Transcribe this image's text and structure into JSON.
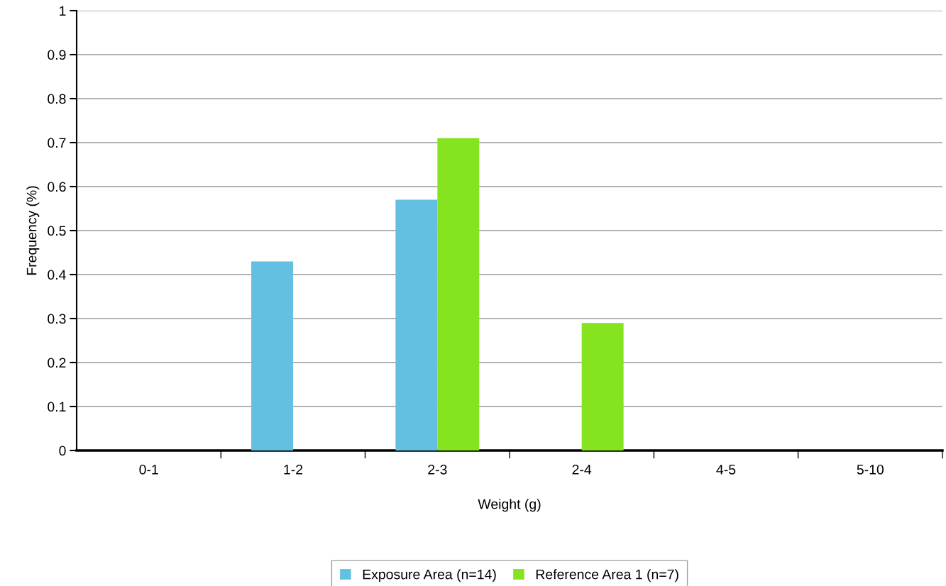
{
  "chart_data": {
    "type": "bar",
    "xlabel": "Weight (g)",
    "ylabel": "Frequency (%)",
    "categories": [
      "0-1",
      "1-2",
      "2-3",
      "2-4",
      "4-5",
      "5-10"
    ],
    "series": [
      {
        "name": "Exposure Area (n=14)",
        "color": "#63c0e0",
        "values": [
          0,
          0.43,
          0.57,
          0,
          0,
          0
        ]
      },
      {
        "name": "Reference Area 1 (n=7)",
        "color": "#86e31f",
        "values": [
          0,
          0,
          0.71,
          0.29,
          0,
          0
        ]
      }
    ],
    "ylim": [
      0,
      1
    ],
    "yticks": [
      0,
      0.1,
      0.2,
      0.3,
      0.4,
      0.5,
      0.6,
      0.7,
      0.8,
      0.9,
      1
    ],
    "grid": "y",
    "legend": "bottom"
  }
}
